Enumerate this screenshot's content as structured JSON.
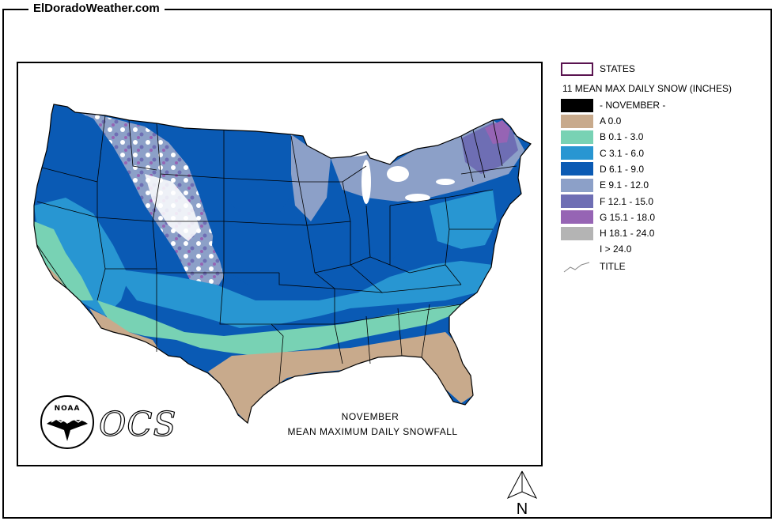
{
  "site_title": "ElDoradoWeather.com",
  "map": {
    "caption_month": "NOVEMBER",
    "caption_subtitle": "MEAN MAXIMUM DAILY SNOWFALL",
    "agency_logo_text": "NOAA",
    "office_logo_text": "OCS"
  },
  "legend": {
    "states_label": "STATES",
    "states_border_color": "#5a1450",
    "layer_title": "11 MEAN MAX DAILY SNOW (INCHES)",
    "month_label": "- NOVEMBER -",
    "classes": [
      {
        "label": "A 0.0",
        "color": "#c8aa8c"
      },
      {
        "label": "B 0.1 - 3.0",
        "color": "#78d2b4"
      },
      {
        "label": "C 3.1 - 6.0",
        "color": "#2896d2"
      },
      {
        "label": "D 6.1 - 9.0",
        "color": "#0a5ab4"
      },
      {
        "label": "E 9.1 - 12.0",
        "color": "#8ca0c8"
      },
      {
        "label": "F 12.1 - 15.0",
        "color": "#6e6eb4"
      },
      {
        "label": "G 15.1 - 18.0",
        "color": "#9664b4"
      },
      {
        "label": "H 18.1 - 24.0",
        "color": "#b4b4b4"
      },
      {
        "label": "I > 24.0",
        "color": "#ffffff"
      }
    ],
    "title_label": "TITLE"
  },
  "north_arrow_label": "N"
}
